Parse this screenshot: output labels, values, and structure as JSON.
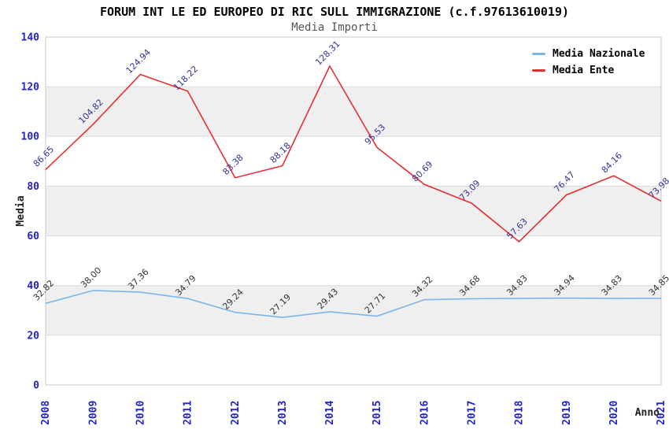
{
  "header": {
    "title": "FORUM INT LE ED EUROPEO DI RIC SULL IMMIGRAZIONE (c.f.97613610019)",
    "subtitle": "Media Importi"
  },
  "chart_data": {
    "type": "line",
    "x": [
      2008,
      2009,
      2010,
      2011,
      2012,
      2013,
      2014,
      2015,
      2016,
      2017,
      2018,
      2019,
      2020,
      2021
    ],
    "series": [
      {
        "name": "Media Nazionale",
        "color": "#7cb5ec",
        "label_color": "#333333",
        "values": [
          32.82,
          38.0,
          37.36,
          34.79,
          29.24,
          27.19,
          29.43,
          27.71,
          34.32,
          34.68,
          34.83,
          34.94,
          34.83,
          34.85
        ]
      },
      {
        "name": "Media Ente",
        "color": "#e62e2e",
        "label_color": "#333399",
        "values": [
          86.65,
          104.82,
          124.94,
          118.22,
          83.38,
          88.18,
          128.31,
          95.53,
          80.69,
          73.09,
          57.63,
          76.47,
          84.16,
          73.98
        ]
      }
    ],
    "xlabel": "Anno",
    "ylabel": "Media",
    "ylim": [
      0,
      140
    ],
    "ytick_step": 20,
    "yticks": [
      0,
      20,
      40,
      60,
      80,
      100,
      120,
      140
    ],
    "legend_position": "top-right-inside",
    "grid": "horizontal-bands",
    "style": {
      "tick_label_color": "#2222cc",
      "band_color": "#efefef",
      "grid_color": "#dcdcdc",
      "border_color": "#c8c8c8",
      "axis_title_color": "#222222"
    }
  }
}
